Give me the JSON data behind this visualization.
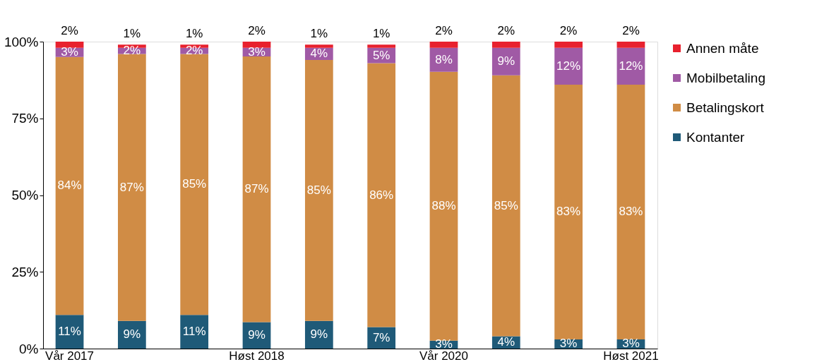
{
  "chart_data": {
    "type": "bar",
    "stacked": true,
    "categories": [
      "Vår 2017",
      null,
      null,
      "Høst 2018",
      null,
      null,
      "Vår 2020",
      null,
      null,
      "Høst 2021"
    ],
    "series": [
      {
        "name": "Kontanter",
        "color": "#1f5a78",
        "values": [
          11,
          9,
          11,
          8.6,
          9,
          7,
          2.6,
          4,
          3,
          3
        ],
        "value_labels": [
          "11%",
          "9%",
          "11%",
          "9%",
          "9%",
          "7%",
          "3%",
          "4%",
          "3%",
          "3%"
        ]
      },
      {
        "name": "Betalingskort",
        "color": "#d08c45",
        "values": [
          84,
          87,
          85,
          86.6,
          85,
          86,
          87.6,
          85,
          83,
          83
        ],
        "value_labels": [
          "84%",
          "87%",
          "85%",
          "87%",
          "85%",
          "86%",
          "88%",
          "85%",
          "83%",
          "83%"
        ]
      },
      {
        "name": "Mobilbetaling",
        "color": "#a05aa5",
        "values": [
          3,
          2,
          2,
          2.8,
          4,
          5,
          7.8,
          9,
          12,
          12
        ],
        "value_labels": [
          "3%",
          "2%",
          "2%",
          "3%",
          "4%",
          "5%",
          "8%",
          "9%",
          "12%",
          "12%"
        ]
      },
      {
        "name": "Annen måte",
        "color": "#e8212e",
        "values": [
          2,
          1,
          1,
          2,
          1,
          1,
          2,
          2,
          2,
          2
        ],
        "value_labels": [
          "2%",
          "1%",
          "1%",
          "2%",
          "1%",
          "1%",
          "2%",
          "2%",
          "2%",
          "2%"
        ]
      }
    ],
    "ylim": [
      0,
      100
    ],
    "yticks": [
      {
        "value": 0,
        "label": "0%"
      },
      {
        "value": 25,
        "label": "25%"
      },
      {
        "value": 50,
        "label": "50%"
      },
      {
        "value": 75,
        "label": "75%"
      },
      {
        "value": 100,
        "label": "100%"
      }
    ],
    "grid": false,
    "legend": "right"
  }
}
